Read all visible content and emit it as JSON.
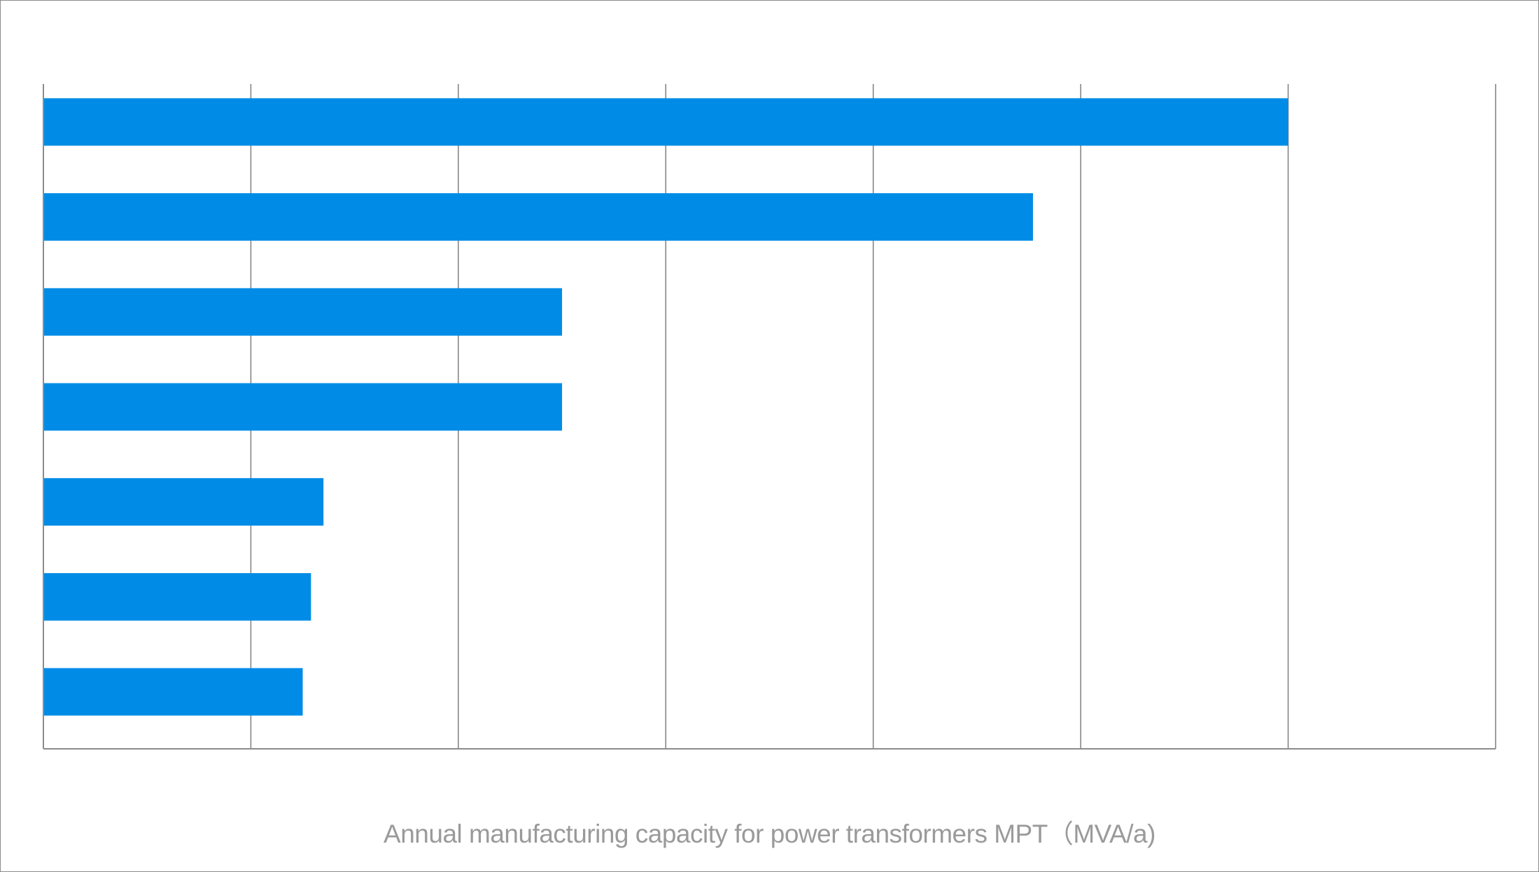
{
  "chart_data": {
    "type": "bar",
    "orientation": "horizontal",
    "title": "",
    "xlabel": "Annual manufacturing capacity for power transformers MPT（MVA/a)",
    "ylabel": "",
    "xlim": [
      0,
      7
    ],
    "gridlines": [
      1,
      2,
      3,
      4,
      5,
      6,
      7
    ],
    "grid": true,
    "legend": "none",
    "bar_color": "#008ce6",
    "categories": [
      "",
      "",
      "",
      "",
      "",
      "",
      ""
    ],
    "values": [
      6.0,
      4.77,
      2.5,
      2.5,
      1.35,
      1.29,
      1.25
    ]
  },
  "colors": {
    "bar": "#008ce6",
    "grid": "#7f7f7f",
    "axis": "#8c8c8c",
    "label": "#9a9a9a",
    "frame": "#8c8c8c"
  }
}
